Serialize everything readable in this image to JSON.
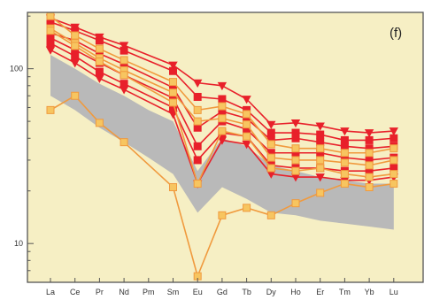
{
  "chart_data": {
    "type": "line",
    "panel_label": "(f)",
    "x_categories": [
      "La",
      "Ce",
      "Pr",
      "Nd",
      "Pm",
      "Sm",
      "Eu",
      "Gd",
      "Tb",
      "Dy",
      "Ho",
      "Er",
      "Tm",
      "Yb",
      "Lu"
    ],
    "y_scale": "log",
    "ylim": [
      6,
      210
    ],
    "y_tick_labels": [
      {
        "value": 10,
        "label": "10"
      },
      {
        "value": 100,
        "label": "100"
      }
    ],
    "grid": false,
    "legend": "none",
    "colors": {
      "background": "#f6efc4",
      "field": "#b9b9b9",
      "red": "#e8202a",
      "orange": "#f09a3e",
      "orange_fill": "#f7c560"
    },
    "field_range": {
      "categories": [
        "La",
        "Ce",
        "Pr",
        "Nd",
        "Pm",
        "Sm",
        "Eu",
        "Gd",
        "Tb",
        "Dy",
        "Ho",
        "Er",
        "Tm",
        "Yb",
        "Lu"
      ],
      "upper": [
        120,
        100,
        82,
        70,
        58,
        50,
        26,
        40,
        36,
        28,
        26,
        24,
        23,
        22,
        22
      ],
      "lower": [
        70,
        58,
        46,
        38,
        31,
        25,
        15,
        21,
        18,
        15,
        14.5,
        13.5,
        13,
        12.5,
        12
      ]
    },
    "series": [
      {
        "color": "red",
        "marker": "square",
        "points": [
          {
            "x": "La",
            "y": 185
          },
          {
            "x": "Ce",
            "y": 165
          },
          {
            "x": "Pr",
            "y": 145
          },
          {
            "x": "Nd",
            "y": 127
          },
          {
            "x": "Sm",
            "y": 97
          },
          {
            "x": "Eu",
            "y": 69
          },
          {
            "x": "Gd",
            "y": 67
          },
          {
            "x": "Tb",
            "y": 58
          },
          {
            "x": "Dy",
            "y": 43
          },
          {
            "x": "Ho",
            "y": 43
          },
          {
            "x": "Er",
            "y": 42
          },
          {
            "x": "Tm",
            "y": 39
          },
          {
            "x": "Yb",
            "y": 39
          },
          {
            "x": "Lu",
            "y": 40
          }
        ]
      },
      {
        "color": "red",
        "marker": "square",
        "points": [
          {
            "x": "La",
            "y": 160
          },
          {
            "x": "Ce",
            "y": 145
          },
          {
            "x": "Pr",
            "y": 122
          },
          {
            "x": "Nd",
            "y": 106
          },
          {
            "x": "Sm",
            "y": 78
          },
          {
            "x": "Eu",
            "y": 46
          },
          {
            "x": "Gd",
            "y": 57
          },
          {
            "x": "Tb",
            "y": 52
          },
          {
            "x": "Dy",
            "y": 39
          },
          {
            "x": "Ho",
            "y": 40
          },
          {
            "x": "Er",
            "y": 38
          },
          {
            "x": "Tm",
            "y": 36
          },
          {
            "x": "Yb",
            "y": 35
          },
          {
            "x": "Lu",
            "y": 36
          }
        ]
      },
      {
        "color": "red",
        "marker": "square",
        "points": [
          {
            "x": "La",
            "y": 150
          },
          {
            "x": "Ce",
            "y": 128
          },
          {
            "x": "Pr",
            "y": 108
          },
          {
            "x": "Nd",
            "y": 92
          },
          {
            "x": "Sm",
            "y": 68
          },
          {
            "x": "Eu",
            "y": 36
          },
          {
            "x": "Gd",
            "y": 50
          },
          {
            "x": "Tb",
            "y": 45
          },
          {
            "x": "Dy",
            "y": 33
          },
          {
            "x": "Ho",
            "y": 33
          },
          {
            "x": "Er",
            "y": 33
          },
          {
            "x": "Tm",
            "y": 31
          },
          {
            "x": "Yb",
            "y": 30
          },
          {
            "x": "Lu",
            "y": 31
          }
        ]
      },
      {
        "color": "red",
        "marker": "square",
        "points": [
          {
            "x": "La",
            "y": 140
          },
          {
            "x": "Ce",
            "y": 118
          },
          {
            "x": "Pr",
            "y": 96
          },
          {
            "x": "Nd",
            "y": 82
          },
          {
            "x": "Sm",
            "y": 60
          },
          {
            "x": "Eu",
            "y": 30
          },
          {
            "x": "Gd",
            "y": 43
          },
          {
            "x": "Tb",
            "y": 41
          },
          {
            "x": "Dy",
            "y": 28
          },
          {
            "x": "Ho",
            "y": 27
          },
          {
            "x": "Er",
            "y": 27
          },
          {
            "x": "Tm",
            "y": 26
          },
          {
            "x": "Yb",
            "y": 26
          },
          {
            "x": "Lu",
            "y": 27
          }
        ]
      },
      {
        "color": "red",
        "marker": "triangle-down",
        "points": [
          {
            "x": "La",
            "y": 128
          },
          {
            "x": "Ce",
            "y": 108
          },
          {
            "x": "Pr",
            "y": 88
          },
          {
            "x": "Nd",
            "y": 76
          },
          {
            "x": "Sm",
            "y": 55
          },
          {
            "x": "Eu",
            "y": 22
          },
          {
            "x": "Gd",
            "y": 39
          },
          {
            "x": "Tb",
            "y": 37
          },
          {
            "x": "Dy",
            "y": 25
          },
          {
            "x": "Ho",
            "y": 24
          },
          {
            "x": "Er",
            "y": 24
          },
          {
            "x": "Tm",
            "y": 23
          },
          {
            "x": "Yb",
            "y": 23
          },
          {
            "x": "Lu",
            "y": 24
          }
        ]
      },
      {
        "color": "red",
        "marker": "triangle-down",
        "points": [
          {
            "x": "La",
            "y": 195
          },
          {
            "x": "Ce",
            "y": 173
          },
          {
            "x": "Pr",
            "y": 152
          },
          {
            "x": "Nd",
            "y": 136
          },
          {
            "x": "Sm",
            "y": 105
          },
          {
            "x": "Eu",
            "y": 83
          },
          {
            "x": "Gd",
            "y": 80
          },
          {
            "x": "Tb",
            "y": 67
          },
          {
            "x": "Dy",
            "y": 48
          },
          {
            "x": "Ho",
            "y": 49
          },
          {
            "x": "Er",
            "y": 47
          },
          {
            "x": "Tm",
            "y": 44
          },
          {
            "x": "Yb",
            "y": 43
          },
          {
            "x": "Lu",
            "y": 44
          }
        ]
      },
      {
        "color": "orange",
        "marker": "square",
        "points": [
          {
            "x": "La",
            "y": 200
          },
          {
            "x": "Ce",
            "y": 155
          },
          {
            "x": "Pr",
            "y": 130
          },
          {
            "x": "Nd",
            "y": 112
          },
          {
            "x": "Sm",
            "y": 84
          },
          {
            "x": "Eu",
            "y": 58
          },
          {
            "x": "Gd",
            "y": 61
          },
          {
            "x": "Tb",
            "y": 55
          },
          {
            "x": "Dy",
            "y": 37
          },
          {
            "x": "Ho",
            "y": 35
          },
          {
            "x": "Er",
            "y": 35
          },
          {
            "x": "Tm",
            "y": 33
          },
          {
            "x": "Yb",
            "y": 33
          },
          {
            "x": "Lu",
            "y": 35
          }
        ]
      },
      {
        "color": "orange",
        "marker": "square",
        "points": [
          {
            "x": "La",
            "y": 170
          },
          {
            "x": "Ce",
            "y": 140
          },
          {
            "x": "Pr",
            "y": 115
          },
          {
            "x": "Nd",
            "y": 98
          },
          {
            "x": "Sm",
            "y": 73
          },
          {
            "x": "Eu",
            "y": 50
          },
          {
            "x": "Gd",
            "y": 52
          },
          {
            "x": "Tb",
            "y": 48
          },
          {
            "x": "Dy",
            "y": 31
          },
          {
            "x": "Ho",
            "y": 30
          },
          {
            "x": "Er",
            "y": 30
          },
          {
            "x": "Tm",
            "y": 29
          },
          {
            "x": "Yb",
            "y": 28
          },
          {
            "x": "Lu",
            "y": 30
          }
        ]
      },
      {
        "color": "orange",
        "marker": "square",
        "points": [
          {
            "x": "La",
            "y": 58
          },
          {
            "x": "Ce",
            "y": 70
          },
          {
            "x": "Pr",
            "y": 49
          },
          {
            "x": "Nd",
            "y": 38
          },
          {
            "x": "Sm",
            "y": 21
          },
          {
            "x": "Eu",
            "y": 6.5
          },
          {
            "x": "Gd",
            "y": 14.5
          },
          {
            "x": "Tb",
            "y": 16
          },
          {
            "x": "Dy",
            "y": 14.5
          },
          {
            "x": "Ho",
            "y": 17
          },
          {
            "x": "Er",
            "y": 19.5
          },
          {
            "x": "Tm",
            "y": 22
          },
          {
            "x": "Yb",
            "y": 21
          },
          {
            "x": "Lu",
            "y": 22
          }
        ]
      },
      {
        "color": "orange",
        "marker": "square",
        "points": [
          {
            "x": "La",
            "y": 165
          },
          {
            "x": "Ce",
            "y": 135
          },
          {
            "x": "Pr",
            "y": 110
          },
          {
            "x": "Nd",
            "y": 92
          },
          {
            "x": "Sm",
            "y": 64
          },
          {
            "x": "Eu",
            "y": 22
          },
          {
            "x": "Gd",
            "y": 44
          },
          {
            "x": "Tb",
            "y": 41
          },
          {
            "x": "Dy",
            "y": 27
          },
          {
            "x": "Ho",
            "y": 26
          },
          {
            "x": "Er",
            "y": 27
          },
          {
            "x": "Tm",
            "y": 25
          },
          {
            "x": "Yb",
            "y": 24
          },
          {
            "x": "Lu",
            "y": 25
          }
        ]
      }
    ]
  }
}
